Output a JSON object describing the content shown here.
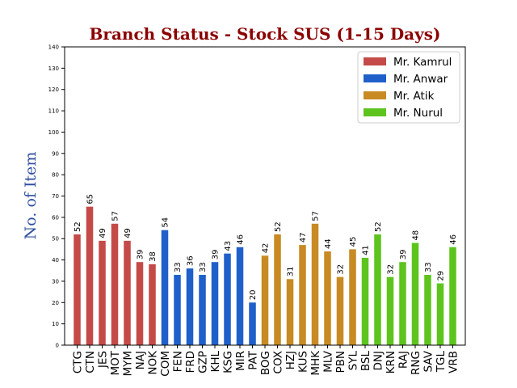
{
  "chart_data": {
    "type": "bar",
    "title": "Branch Status - Stock SUS (1-15 Days)",
    "ylabel": "No. of Item",
    "xlabel": "",
    "ylim": [
      0,
      140
    ],
    "yticks": [
      "0",
      "10",
      "20",
      "30",
      "40",
      "50",
      "60",
      "70",
      "80",
      "90",
      "100",
      "110",
      "120",
      "130",
      "140"
    ],
    "legend_position": "top-right",
    "title_color": "#8b0000",
    "ylabel_color": "#2f4f9f",
    "series": [
      {
        "name": "Mr. Kamrul",
        "color": "#c44a48",
        "categories": [
          "CTG",
          "CTN",
          "JES",
          "MOT",
          "MYM",
          "NAJ",
          "NOK"
        ],
        "values": [
          52,
          65,
          49,
          57,
          49,
          39,
          38
        ]
      },
      {
        "name": "Mr. Anwar",
        "color": "#1f5fc9",
        "categories": [
          "COM",
          "FEN",
          "FRD",
          "GZP",
          "KHL",
          "KSG",
          "MIR",
          "PAT"
        ],
        "values": [
          54,
          33,
          36,
          33,
          39,
          43,
          46,
          20
        ]
      },
      {
        "name": "Mr. Atik",
        "color": "#c88a22",
        "categories": [
          "BOG",
          "COX",
          "HZJ",
          "KUS",
          "MHK",
          "MLV",
          "PBN",
          "SYL"
        ],
        "values": [
          42,
          52,
          31,
          47,
          57,
          44,
          32,
          45
        ]
      },
      {
        "name": "Mr. Nurul",
        "color": "#5dc41e",
        "categories": [
          "BSL",
          "DNJ",
          "KRN",
          "RAJ",
          "RNG",
          "SAV",
          "TGL",
          "VRB"
        ],
        "values": [
          41,
          52,
          32,
          39,
          48,
          33,
          29,
          46
        ]
      }
    ]
  }
}
